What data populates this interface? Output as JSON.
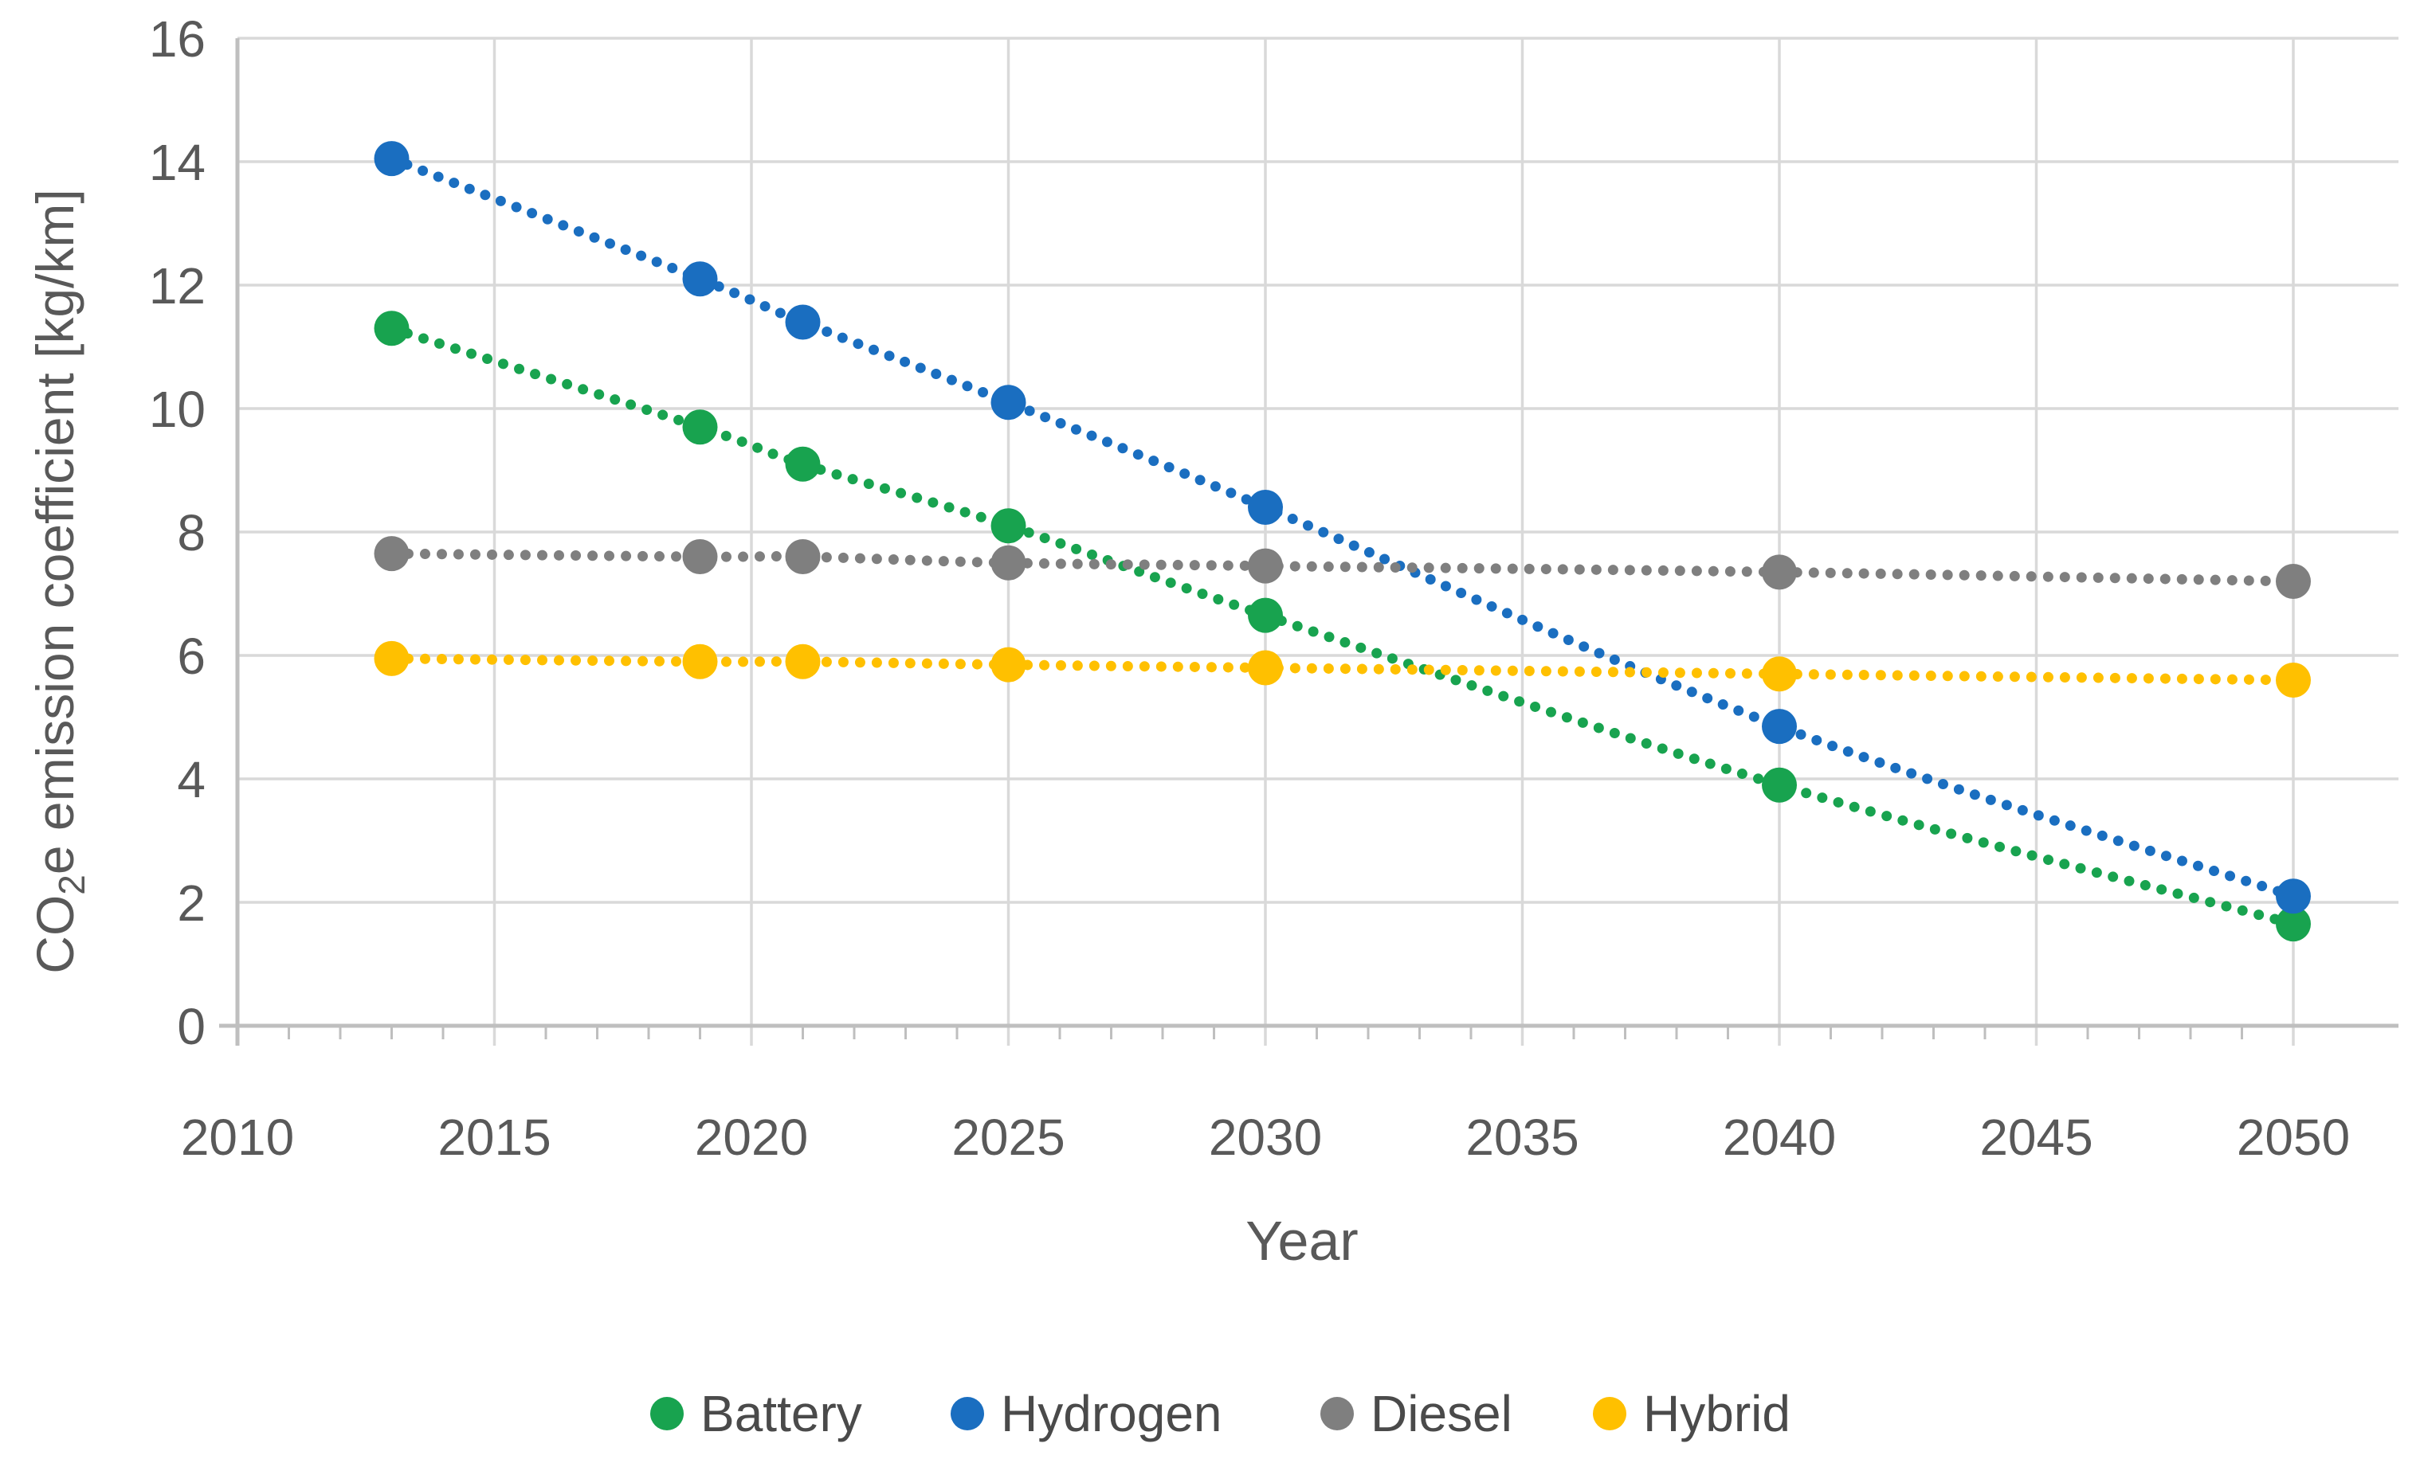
{
  "figure": {
    "title": "",
    "xlabel": "Year",
    "ylabel": "CO2e emission coefficient [kg/km]",
    "ylabel_parts": {
      "pre": "CO",
      "sub": "2",
      "post": "e emission coefficient [kg/km]"
    }
  },
  "chart_data": {
    "type": "scatter",
    "title": "",
    "xlabel": "Year",
    "ylabel": "CO2e emission coefficient [kg/km]",
    "x": [
      2013,
      2019,
      2021,
      2025,
      2030,
      2040,
      2050
    ],
    "series": [
      {
        "name": "Battery",
        "color": "#18A34F",
        "values": [
          11.3,
          9.7,
          9.1,
          8.1,
          6.65,
          3.9,
          1.65
        ]
      },
      {
        "name": "Hydrogen",
        "color": "#1A6EC0",
        "values": [
          14.05,
          12.1,
          11.4,
          10.1,
          8.4,
          4.85,
          2.1
        ]
      },
      {
        "name": "Diesel",
        "color": "#7F7F7F",
        "values": [
          7.65,
          7.6,
          7.6,
          7.5,
          7.45,
          7.35,
          7.2
        ]
      },
      {
        "name": "Hybrid",
        "color": "#FFC000",
        "values": [
          5.95,
          5.9,
          5.9,
          5.85,
          5.8,
          5.7,
          5.6
        ]
      }
    ],
    "xlim": [
      2010,
      2050
    ],
    "ylim": [
      0,
      16
    ],
    "x_ticks": [
      2010,
      2015,
      2020,
      2025,
      2030,
      2035,
      2040,
      2045,
      2050
    ],
    "y_ticks": [
      0,
      2,
      4,
      6,
      8,
      10,
      12,
      14,
      16
    ],
    "grid": true,
    "line_style": "dotted",
    "marker": "circle",
    "legend_position": "bottom",
    "legend": [
      "Battery",
      "Hydrogen",
      "Diesel",
      "Hybrid"
    ],
    "colors": {
      "grid": "#D9D9D9",
      "axis": "#BFBFBF",
      "text": "#595959"
    }
  }
}
